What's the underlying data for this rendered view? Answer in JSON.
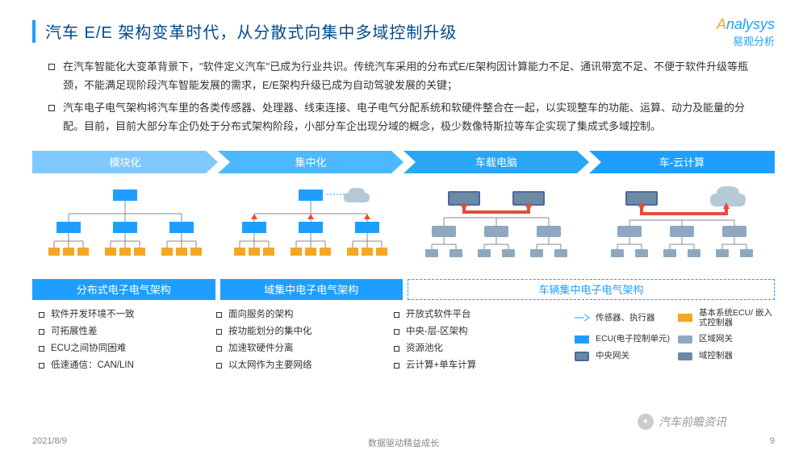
{
  "title": "汽车 E/E 架构变革时代，从分散式向集中多域控制升级",
  "logo": {
    "brand": "nalysys",
    "brand_prefix": "A",
    "sub": "易观分析"
  },
  "paragraphs": [
    "在汽车智能化大变革背景下，\"软件定义汽车\"已成为行业共识。传统汽车采用的分布式E/E架构因计算能力不足、通讯带宽不足、不便于软件升级等瓶颈，不能满足现阶段汽车智能发展的需求，E/E架构升级已成为自动驾驶发展的关键；",
    "汽车电子电气架构将汽车里的各类传感器、处理器、线束连接、电子电气分配系统和软硬件整合在一起，以实现整车的功能、运算、动力及能量的分配。目前，目前大部分车企仍处于分布式架构阶段，小部分车企出现分域的概念，极少数像特斯拉等车企实现了集成式多域控制。"
  ],
  "stages": {
    "labels": [
      "模块化",
      "集中化",
      "车载电脑",
      "车-云计算"
    ],
    "colors": [
      "#7fc9ff",
      "#4db8ff",
      "#2aa6f5",
      "#1e9fff"
    ]
  },
  "architectures": [
    {
      "label": "分布式电子电气架构",
      "style": "solid",
      "width": 1
    },
    {
      "label": "域集中电子电气架构",
      "style": "solid",
      "width": 1
    },
    {
      "label": "车辆集中电子电气架构",
      "style": "dashed",
      "width": 2
    }
  ],
  "features": [
    [
      "软件开发环境不一致",
      "可拓展性差",
      "ECU之间协同困难",
      "低速通信：CAN/LIN"
    ],
    [
      "面向服务的架构",
      "按功能划分的集中化",
      "加速软硬件分离",
      "以太网作为主要网络"
    ],
    [
      "开放式软件平台",
      "中央-层-区架构",
      "资源池化",
      "云计算+单车计算"
    ]
  ],
  "legend": [
    {
      "label": "传感器、执行器",
      "icon": "sensor"
    },
    {
      "label": "基本系统ECU/\n嵌入式控制器",
      "icon": "ecu-orange"
    },
    {
      "label": "ECU(电子控制单元)",
      "icon": "ecu-blue"
    },
    {
      "label": "区域网关",
      "icon": "zone-gw"
    },
    {
      "label": "中央网关",
      "icon": "central-gw"
    },
    {
      "label": "域控制器",
      "icon": "domain"
    }
  ],
  "diagram_colors": {
    "ecu_blue": "#1e9fff",
    "ecu_orange": "#f5a623",
    "gateway": "#4a6a9e",
    "zone": "#8fa8bf",
    "domain": "#6b8aa3",
    "line": "#888",
    "red": "#e74c3c",
    "cloud": "#b5c9d6"
  },
  "footer": {
    "date": "2021/8/9",
    "tagline": "数据驱动精益成长",
    "page": "9"
  },
  "watermark": "汽车前瞻资讯"
}
